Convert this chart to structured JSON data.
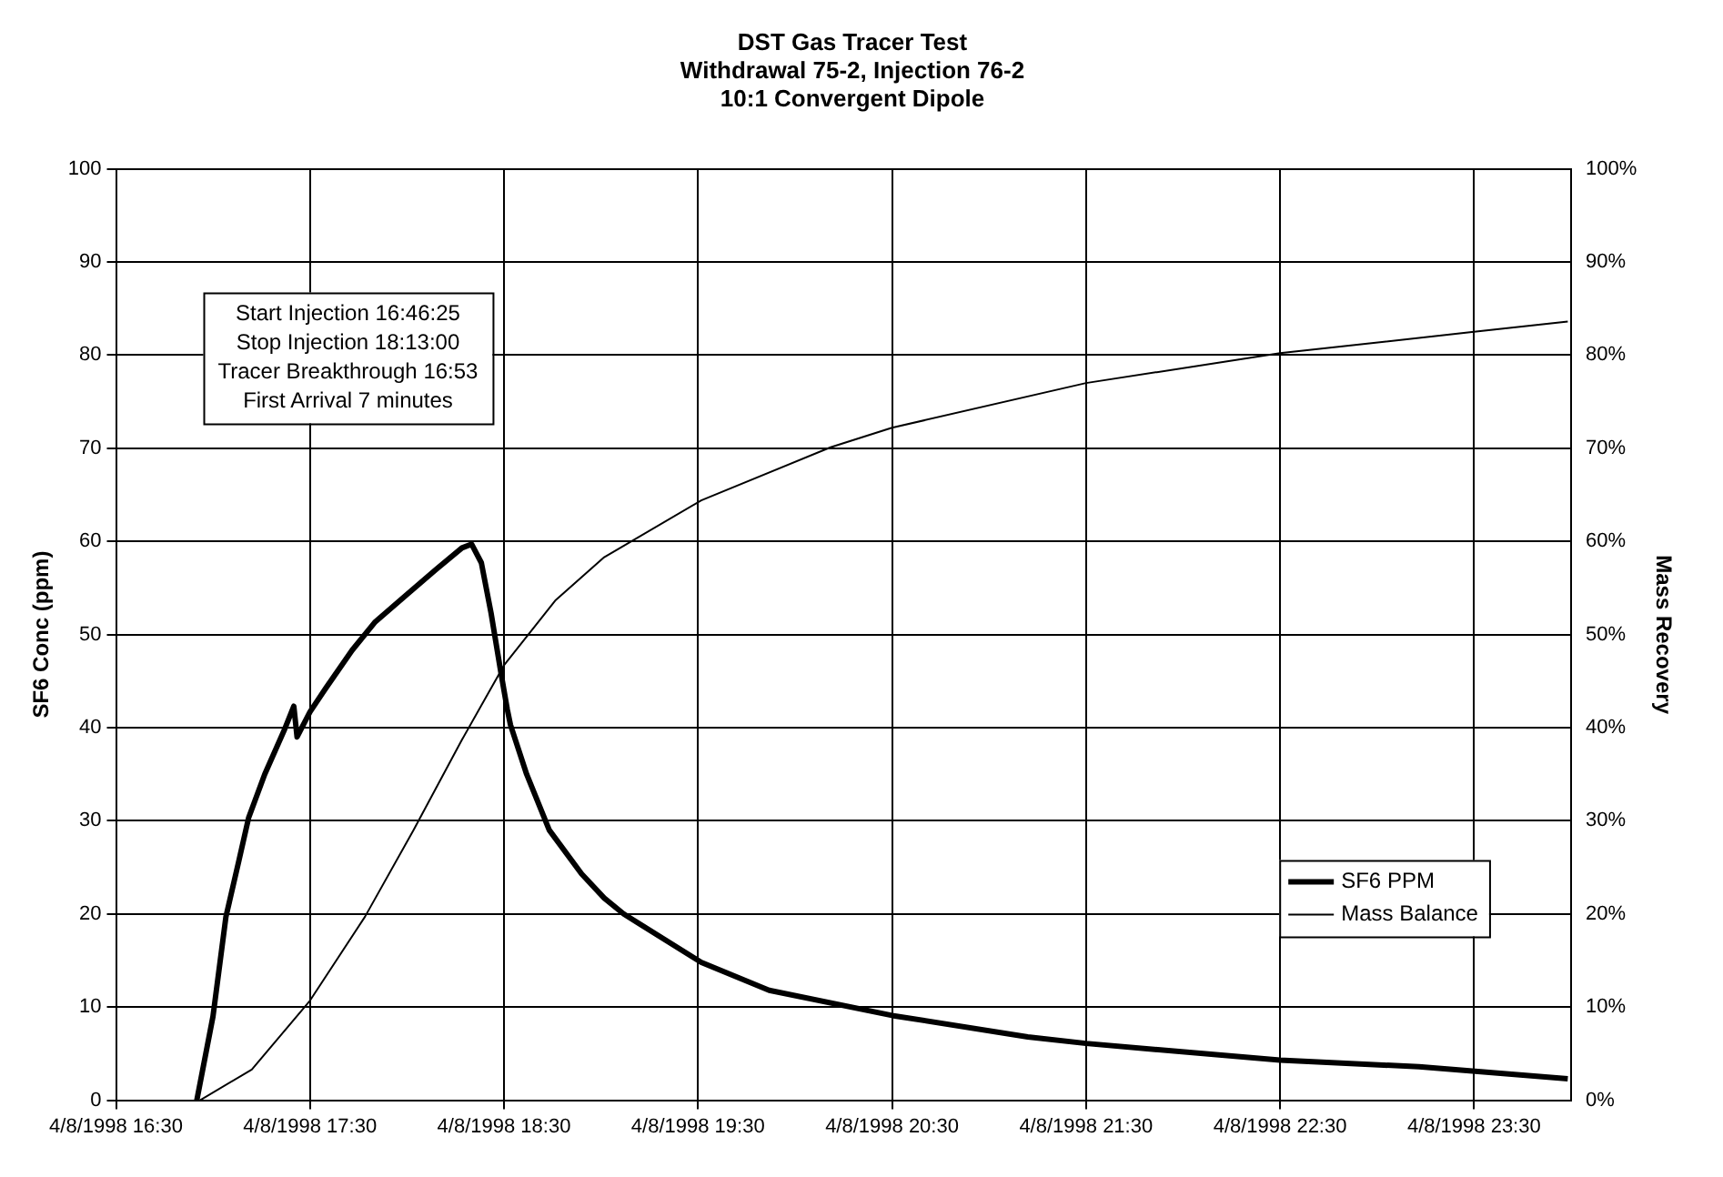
{
  "chart_data": {
    "type": "line",
    "title": "DST Gas Tracer Test",
    "subtitle": "Withdrawal 75-2, Injection 76-2\n10:1 Convergent Dipole",
    "ylabel": "SF6 Conc (ppm)",
    "y2label": "Mass Recovery",
    "annotations": [
      "Start Injection 16:46:25",
      "Stop Injection 18:13:00",
      "Tracer Breakthrough 16:53",
      "First Arrival 7 minutes"
    ],
    "xlim": [
      "1998-04-08T16:30",
      "1998-04-09T00:00"
    ],
    "xticks": [
      {
        "value": "1998-04-08T16:30",
        "label": "4/8/1998 16:30"
      },
      {
        "value": "1998-04-08T17:30",
        "label": "4/8/1998 17:30"
      },
      {
        "value": "1998-04-08T18:30",
        "label": "4/8/1998 18:30"
      },
      {
        "value": "1998-04-08T19:30",
        "label": "4/8/1998 19:30"
      },
      {
        "value": "1998-04-08T20:30",
        "label": "4/8/1998 20:30"
      },
      {
        "value": "1998-04-08T21:30",
        "label": "4/8/1998 21:30"
      },
      {
        "value": "1998-04-08T22:30",
        "label": "4/8/1998 22:30"
      },
      {
        "value": "1998-04-08T23:30",
        "label": "4/8/1998 23:30"
      }
    ],
    "ylim": [
      0,
      100
    ],
    "yticks": [
      0,
      10,
      20,
      30,
      40,
      50,
      60,
      70,
      80,
      90,
      100
    ],
    "y2lim": [
      0,
      100
    ],
    "y2ticks": [
      {
        "value": 0,
        "label": "0%"
      },
      {
        "value": 10,
        "label": "10%"
      },
      {
        "value": 20,
        "label": "20%"
      },
      {
        "value": 30,
        "label": "30%"
      },
      {
        "value": 40,
        "label": "40%"
      },
      {
        "value": 50,
        "label": "50%"
      },
      {
        "value": 60,
        "label": "60%"
      },
      {
        "value": 70,
        "label": "70%"
      },
      {
        "value": 80,
        "label": "80%"
      },
      {
        "value": 90,
        "label": "90%"
      },
      {
        "value": 100,
        "label": "100%"
      }
    ],
    "grid": true,
    "legend": "bottom right",
    "marker": "none",
    "line_style": "solid",
    "series": [
      {
        "name": "SF6 PPM",
        "color": "#000000",
        "x": [
          "1998-04-08T16:55",
          "1998-04-08T17:00",
          "1998-04-08T17:04",
          "1998-04-08T17:08",
          "1998-04-08T17:11",
          "1998-04-08T17:16",
          "1998-04-08T17:22",
          "1998-04-08T17:25",
          "1998-04-08T17:26",
          "1998-04-08T17:30",
          "1998-04-08T17:35",
          "1998-04-08T17:43",
          "1998-04-08T17:50",
          "1998-04-08T18:00",
          "1998-04-08T18:09",
          "1998-04-08T18:17",
          "1998-04-08T18:20",
          "1998-04-08T18:23",
          "1998-04-08T18:26",
          "1998-04-08T18:29",
          "1998-04-08T18:31",
          "1998-04-08T18:32",
          "1998-04-08T18:37",
          "1998-04-08T18:44",
          "1998-04-08T18:54",
          "1998-04-08T19:01",
          "1998-04-08T19:07",
          "1998-04-08T19:31",
          "1998-04-08T19:52",
          "1998-04-08T20:30",
          "1998-04-08T21:12",
          "1998-04-08T21:30",
          "1998-04-08T22:30",
          "1998-04-08T23:13",
          "1998-04-08T23:59"
        ],
        "values": [
          0,
          9,
          19.7,
          25.7,
          30.3,
          35,
          39.7,
          42.3,
          39,
          41.7,
          44.3,
          48.3,
          51.3,
          54.3,
          57,
          59.3,
          59.7,
          57.7,
          52.3,
          46,
          42,
          40.3,
          35,
          29,
          24.3,
          21.7,
          20,
          14.8,
          11.8,
          9.1,
          6.8,
          6.1,
          4.3,
          3.6,
          2.3
        ]
      },
      {
        "name": "Mass Balance",
        "color": "#000000",
        "axis": "y2",
        "x": [
          "1998-04-08T16:56",
          "1998-04-08T17:12",
          "1998-04-08T17:30",
          "1998-04-08T17:47",
          "1998-04-08T18:02",
          "1998-04-08T18:17",
          "1998-04-08T18:30",
          "1998-04-08T18:46",
          "1998-04-08T19:01",
          "1998-04-08T19:31",
          "1998-04-08T20:11",
          "1998-04-08T20:30",
          "1998-04-08T21:30",
          "1998-04-08T22:30",
          "1998-04-08T23:30",
          "1998-04-08T23:59"
        ],
        "values": [
          0,
          3.3,
          10.7,
          19.7,
          29,
          38.7,
          46.7,
          53.7,
          58.3,
          64.4,
          70.1,
          72.2,
          77,
          80.2,
          82.5,
          83.6
        ]
      }
    ]
  }
}
